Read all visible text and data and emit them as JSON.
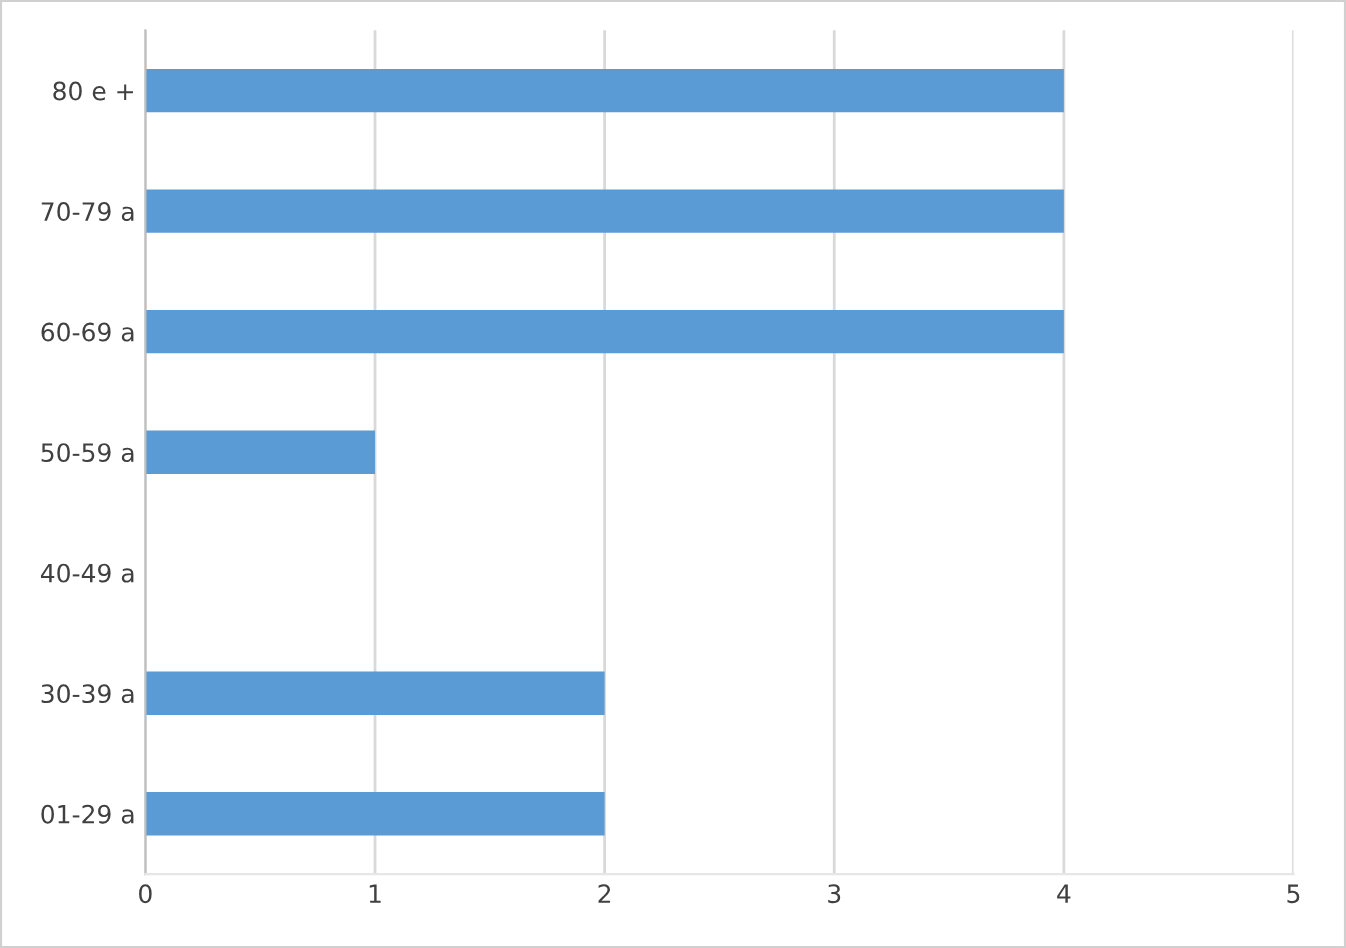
{
  "chart_data": {
    "type": "bar",
    "orientation": "horizontal",
    "categories": [
      "80 e +",
      "70-79 a",
      "60-69 a",
      "50-59 a",
      "40-49 a",
      "30-39 a",
      "01-29 a"
    ],
    "values": [
      4,
      4,
      4,
      1,
      0,
      2,
      2
    ],
    "color": "#5b9bd5",
    "xlim": [
      0,
      5
    ],
    "xticks": [
      0,
      1,
      2,
      3,
      4,
      5
    ],
    "grid": "x",
    "legend": false
  }
}
